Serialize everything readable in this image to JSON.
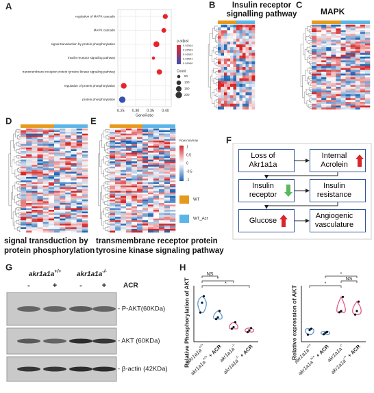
{
  "panel_labels": [
    "A",
    "B",
    "C",
    "D",
    "E",
    "F",
    "G",
    "H"
  ],
  "chart_data": [
    {
      "type": "dot",
      "categories": [
        "regulation of MAPK cascade",
        "MAPK cascade",
        "signal transduction by protein phosphorylation",
        "insulin receptor signaling pathway",
        "transmembrane receptor protein tyrosine kinase signaling pathway",
        "regulation of protein phosphorylation",
        "protein phosphorylation"
      ],
      "values": [
        0.4,
        0.395,
        0.37,
        0.36,
        0.38,
        0.26,
        0.255
      ],
      "sizes": [
        120,
        110,
        170,
        50,
        140,
        160,
        200
      ],
      "colors": [
        "#e8232a",
        "#e8232a",
        "#e8232a",
        "#e8232a",
        "#e8232a",
        "#e8232a",
        "#3a50b0"
      ],
      "xlabel": "GeneRatio",
      "xlim": [
        0.24,
        0.42
      ],
      "xticks": [
        0.25,
        {
          "value": 0.3,
          "label": "0.30"
        },
        0.35,
        {
          "value": 0.4,
          "label": "0.40"
        }
      ],
      "legend": {
        "color_title": "p.adjust",
        "color_labels": [
          "0.01504",
          "0.01503",
          "0.01502",
          "0.01501",
          "0.01500"
        ],
        "size_title": "Count",
        "size_values": [
          50,
          100,
          150,
          200
        ]
      }
    },
    {
      "type": "violin",
      "ylabel": "Relative Phosphorylation of AKT",
      "categories": [
        {
          "name": "akr1a1a",
          "sup": "+/+",
          "suffix": ""
        },
        {
          "name": "akr1a1a",
          "sup": "+/+",
          "suffix": " + ACR"
        },
        {
          "name": "akr1a1a",
          "sup": "-/-",
          "suffix": ""
        },
        {
          "name": "akr1a1a",
          "sup": "-/-",
          "suffix": " + ACR"
        }
      ],
      "values": [
        [
          0.9,
          1.2,
          1.4
        ],
        [
          0.7,
          0.75,
          0.95
        ],
        [
          0.4,
          0.45,
          0.6
        ],
        [
          0.3,
          0.35,
          0.42
        ]
      ],
      "colors": [
        "#5b9bd5",
        "#5b9bd5",
        "#e05a8a",
        "#e05a8a"
      ],
      "ylim": [
        0,
        1.6
      ],
      "significance": [
        "NS",
        "*",
        "*"
      ]
    },
    {
      "type": "violin",
      "ylabel": "Relative expression of AKT",
      "categories": [
        {
          "name": "akr1a1a",
          "sup": "+/+",
          "suffix": ""
        },
        {
          "name": "akr1a1a",
          "sup": "+/+",
          "suffix": " + ACR"
        },
        {
          "name": "akr1a1a",
          "sup": "-/-",
          "suffix": ""
        },
        {
          "name": "akr1a1a",
          "sup": "-/-",
          "suffix": " + ACR"
        }
      ],
      "values": [
        [
          0.3,
          0.5,
          0.55
        ],
        [
          0.32,
          0.38,
          0.42
        ],
        [
          1.25,
          1.3,
          1.9
        ],
        [
          1.15,
          1.3,
          1.7
        ]
      ],
      "colors": [
        "#5b9bd5",
        "#5b9bd5",
        "#e05a8a",
        "#e05a8a"
      ],
      "ylim": [
        0,
        2.2
      ],
      "significance": [
        "*",
        "NS",
        "*"
      ]
    }
  ],
  "heatmaps": {
    "titles": [
      "Insulin receptor signalling pathway",
      "MAPK",
      "signal transduction by protein phosphorylation",
      "transmembrane receptor protein tyrosine kinase signaling pathway"
    ],
    "legend_title": "Row min/max",
    "scale_labels": [
      "1",
      "0.5",
      "0",
      "-0.5",
      "-1"
    ],
    "groups": [
      {
        "name": "WT",
        "color": "#e69a1c"
      },
      {
        "name": "WT_Acr",
        "color": "#5bb5e6"
      }
    ]
  },
  "flowchart": {
    "nodes": [
      "Loss of Akr1a1a",
      "Internal Acrolein",
      "Insulin receptor",
      "Insulin resistance",
      "Glucose",
      "Angiogenic vasculature"
    ]
  },
  "blot": {
    "genotypes": [
      {
        "name": "akr1a1a",
        "sup": "+/+"
      },
      {
        "name": "akr1a1a",
        "sup": "-/-"
      }
    ],
    "treatment": "ACR",
    "lanes": [
      "-",
      "+",
      "-",
      "+"
    ],
    "bands": [
      "- P-AKT(60KDa)",
      "- AKT (60KDa)",
      "- β-actin (42KDa)"
    ]
  }
}
